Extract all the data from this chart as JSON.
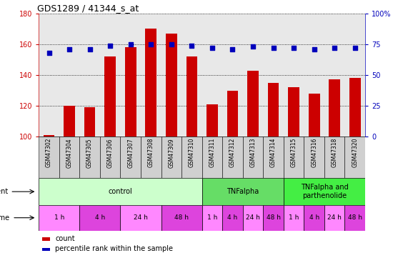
{
  "title": "GDS1289 / 41344_s_at",
  "samples": [
    "GSM47302",
    "GSM47304",
    "GSM47305",
    "GSM47306",
    "GSM47307",
    "GSM47308",
    "GSM47309",
    "GSM47310",
    "GSM47311",
    "GSM47312",
    "GSM47313",
    "GSM47314",
    "GSM47315",
    "GSM47316",
    "GSM47318",
    "GSM47320"
  ],
  "counts": [
    101,
    120,
    119,
    152,
    158,
    170,
    167,
    152,
    121,
    130,
    143,
    135,
    132,
    128,
    137,
    138
  ],
  "percentile_raw": [
    68,
    71,
    71,
    74,
    75,
    75,
    75,
    74,
    72,
    71,
    73,
    72,
    72,
    71,
    72,
    72
  ],
  "ylim_left": [
    100,
    180
  ],
  "ylim_right": [
    0,
    100
  ],
  "yticks_left": [
    100,
    120,
    140,
    160,
    180
  ],
  "yticks_right": [
    0,
    25,
    50,
    75,
    100
  ],
  "bar_color": "#cc0000",
  "dot_color": "#0000bb",
  "agent_groups": [
    {
      "label": "control",
      "start": 0,
      "end": 8,
      "color": "#ccffcc"
    },
    {
      "label": "TNFalpha",
      "start": 8,
      "end": 12,
      "color": "#66dd66"
    },
    {
      "label": "TNFalpha and\nparthenolide",
      "start": 12,
      "end": 16,
      "color": "#44ee44"
    }
  ],
  "time_spans": [
    {
      "label": "1 h",
      "start": 0,
      "end": 2,
      "color": "#ff88ff"
    },
    {
      "label": "4 h",
      "start": 2,
      "end": 4,
      "color": "#dd44dd"
    },
    {
      "label": "24 h",
      "start": 4,
      "end": 6,
      "color": "#ff88ff"
    },
    {
      "label": "48 h",
      "start": 6,
      "end": 8,
      "color": "#dd44dd"
    },
    {
      "label": "1 h",
      "start": 8,
      "end": 9,
      "color": "#ff88ff"
    },
    {
      "label": "4 h",
      "start": 9,
      "end": 10,
      "color": "#dd44dd"
    },
    {
      "label": "24 h",
      "start": 10,
      "end": 11,
      "color": "#ff88ff"
    },
    {
      "label": "48 h",
      "start": 11,
      "end": 12,
      "color": "#dd44dd"
    },
    {
      "label": "1 h",
      "start": 12,
      "end": 13,
      "color": "#ff88ff"
    },
    {
      "label": "4 h",
      "start": 13,
      "end": 14,
      "color": "#dd44dd"
    },
    {
      "label": "24 h",
      "start": 14,
      "end": 15,
      "color": "#ff88ff"
    },
    {
      "label": "48 h",
      "start": 15,
      "end": 16,
      "color": "#dd44dd"
    }
  ]
}
